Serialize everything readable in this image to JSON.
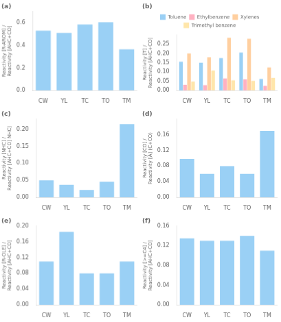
{
  "chart_data": [
    {
      "type": "bar",
      "title": "(a)",
      "categories": [
        "CW",
        "YL",
        "TC",
        "TO",
        "TM"
      ],
      "values": [
        0.53,
        0.51,
        0.585,
        0.605,
        0.365
      ],
      "ylabel": "Reactivity [R-AROM] / Reactivity [AHC+CO]",
      "ylim": [
        0.0,
        0.7
      ],
      "yticks": [
        {
          "value": 0.0,
          "label": "0.0"
        },
        0.2,
        0.4,
        0.6
      ],
      "grid": false
    },
    {
      "type": "bar",
      "title": "(b)",
      "categories": [
        "CW",
        "YL",
        "TC",
        "TO",
        "TM"
      ],
      "series": [
        {
          "name": "Toluene",
          "values": [
            0.155,
            0.15,
            0.175,
            0.205,
            0.062
          ]
        },
        {
          "name": "Ethylbenzene",
          "values": [
            0.03,
            0.028,
            0.065,
            0.06,
            0.025
          ]
        },
        {
          "name": "Xylenes",
          "values": [
            0.2,
            0.18,
            0.285,
            0.28,
            0.125
          ]
        },
        {
          "name": "Trimethyl benzene",
          "values": [
            0.048,
            0.108,
            0.055,
            0.052,
            0.068
          ]
        }
      ],
      "ylabel": "Reactivity [T] / Reactivity [AHC+CO]",
      "ylim": [
        0.0,
        0.3
      ],
      "yticks": [
        {
          "value": 0.0,
          "label": "0.00"
        },
        0.05,
        {
          "value": 0.1,
          "label": "0.10"
        },
        0.15,
        {
          "value": 0.2,
          "label": "0.20"
        },
        0.25
      ],
      "legend": "top",
      "grid": false
    },
    {
      "type": "bar",
      "title": "(c)",
      "categories": [
        "CW",
        "YL",
        "TC",
        "TO",
        "TM"
      ],
      "values": [
        0.05,
        0.037,
        0.022,
        0.046,
        0.215
      ],
      "ylabel": "Reactivity [NHC] / Reactivity [AHC+CO] NHC]",
      "ylim": [
        0.0,
        0.23
      ],
      "yticks": [
        {
          "value": 0.0,
          "label": "0.00"
        },
        0.05,
        {
          "value": 0.1,
          "label": "0.10"
        },
        0.15,
        {
          "value": 0.2,
          "label": "0.20"
        }
      ],
      "grid": false
    },
    {
      "type": "bar",
      "title": "(d)",
      "categories": [
        "CW",
        "YL",
        "TC",
        "TO",
        "TM"
      ],
      "values": [
        0.098,
        0.06,
        0.08,
        0.06,
        0.17
      ],
      "ylabel": "Reactivity [CO] / Reactivity [A] (C+CO)",
      "ylim": [
        0.0,
        0.2
      ],
      "yticks": [
        {
          "value": 0.0,
          "label": "0.00"
        },
        0.04,
        0.08,
        0.12,
        0.16
      ],
      "grid": false
    },
    {
      "type": "bar",
      "title": "(e)",
      "categories": [
        "CW",
        "YL",
        "TC",
        "TO",
        "TM"
      ],
      "values": [
        0.11,
        0.185,
        0.08,
        0.08,
        0.11
      ],
      "ylabel": "Reactivity [R-OLE] / Reactivity [AHC+CO]",
      "ylim": [
        0.0,
        0.2
      ],
      "yticks": [
        {
          "value": 0.0,
          "label": "0.00"
        },
        0.04,
        0.08,
        0.12,
        0.16,
        {
          "value": 0.2,
          "label": "0.20"
        }
      ],
      "grid": false
    },
    {
      "type": "bar",
      "title": "(f)",
      "categories": [
        "CW",
        "YL",
        "TC",
        "TO",
        "TM"
      ],
      "values": [
        0.135,
        0.13,
        0.13,
        0.14,
        0.11
      ],
      "ylabel": "Reactivity [>=C4] / Reactivity [AHC+CO]",
      "ylim": [
        0.0,
        0.16
      ],
      "yticks": [
        {
          "value": 0.0,
          "label": "0.00"
        },
        0.04,
        0.08,
        0.12,
        0.16
      ],
      "grid": false
    }
  ]
}
